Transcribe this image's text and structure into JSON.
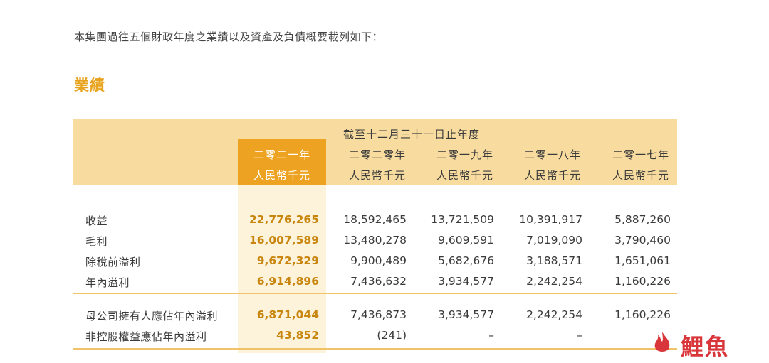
{
  "intro": "本集團過往五個財政年度之業績以及資產及負債概要載列如下：",
  "section_title": "業績",
  "table": {
    "period_header": "截至十二月三十一日止年度",
    "columns": [
      {
        "year": "二零二一年",
        "unit": "人民幣千元",
        "highlight": true
      },
      {
        "year": "二零二零年",
        "unit": "人民幣千元",
        "highlight": false
      },
      {
        "year": "二零一九年",
        "unit": "人民幣千元",
        "highlight": false
      },
      {
        "year": "二零一八年",
        "unit": "人民幣千元",
        "highlight": false
      },
      {
        "year": "二零一七年",
        "unit": "人民幣千元",
        "highlight": false
      }
    ],
    "rows": [
      {
        "label": "收益",
        "values": [
          "22,776,265",
          "18,592,465",
          "13,721,509",
          "10,391,917",
          "5,887,260"
        ]
      },
      {
        "label": "毛利",
        "values": [
          "16,007,589",
          "13,480,278",
          "9,609,591",
          "7,019,090",
          "3,790,460"
        ]
      },
      {
        "label": "除稅前溢利",
        "values": [
          "9,672,329",
          "9,900,489",
          "5,682,676",
          "3,188,571",
          "1,651,061"
        ]
      },
      {
        "label": "年內溢利",
        "values": [
          "6,914,896",
          "7,436,632",
          "3,934,577",
          "2,242,254",
          "1,160,226"
        ]
      },
      {
        "label": "母公司擁有人應佔年內溢利",
        "values": [
          "6,871,044",
          "7,436,873",
          "3,934,577",
          "2,242,254",
          "1,160,226"
        ]
      },
      {
        "label": "非控股權益應佔年內溢利",
        "values": [
          "43,852",
          "(241)",
          "–",
          "–",
          ""
        ]
      }
    ]
  },
  "watermark": {
    "text": "鯉魚",
    "icon": "fire-icon",
    "color": "#d9363b"
  }
}
